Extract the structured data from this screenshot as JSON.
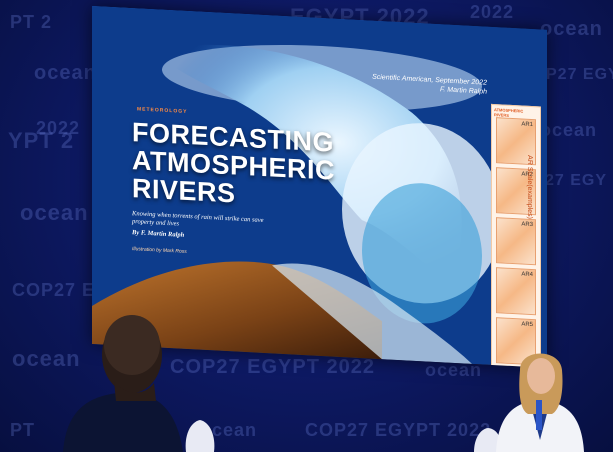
{
  "backdrop": {
    "texts": [
      "EGYPT 2022",
      "2022",
      "ocean",
      "ocean",
      "COP27 EGY",
      "ocean",
      "PT 2",
      "ocean",
      "2022",
      "YPT 2",
      "ocean",
      "27 EGY",
      "COP27 EGYPT 2022",
      "ocean",
      "ocean",
      "COP27 EGYPT 2022",
      "ocean",
      "COP27 EGYPT 2022",
      "PT"
    ]
  },
  "screen": {
    "kicker": "METEOROLOGY",
    "title_lines": [
      "FORECASTING",
      "ATMOSPHERIC",
      "RIVERS"
    ],
    "subtitle": "Knowing when torrents of rain will strike can save property and lives",
    "byline": "By F. Martin Ralph",
    "illustration_credit": "Illustration by Mark Ross",
    "citation": [
      "Scientific American, September 2022",
      "F. Martin Ralph"
    ],
    "panel_header": "ATMOSPHERIC RIVERS",
    "panels": [
      "AR1",
      "AR2",
      "AR3",
      "AR4",
      "AR5"
    ],
    "scale_label": "AR Scale(examples)"
  },
  "colors": {
    "backdrop": "#0e1a66",
    "accent_orange": "#ff8c42",
    "title_white": "#ffffff"
  }
}
